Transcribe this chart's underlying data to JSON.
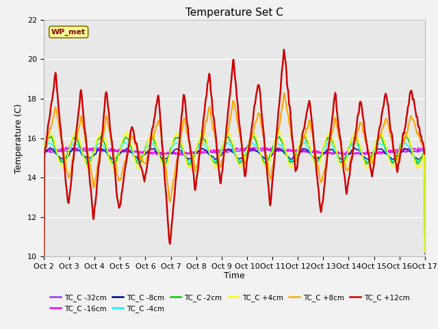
{
  "title": "Temperature Set C",
  "xlabel": "Time",
  "ylabel": "Temperature (C)",
  "ylim": [
    10,
    22
  ],
  "yticks": [
    10,
    12,
    14,
    16,
    18,
    20,
    22
  ],
  "annotation_text": "WP_met",
  "annotation_color": "#8B0000",
  "annotation_bg": "#FFFF99",
  "annotation_edge": "#8B7000",
  "series_colors": {
    "TC_C -32cm": "#9B30FF",
    "TC_C -16cm": "#FF00FF",
    "TC_C -8cm": "#00008B",
    "TC_C -4cm": "#00FFFF",
    "TC_C -2cm": "#00CC00",
    "TC_C +4cm": "#FFFF00",
    "TC_C +8cm": "#FFA500",
    "TC_C +12cm": "#CC0000"
  },
  "xtick_labels": [
    "Oct 2",
    "Oct 3",
    "Oct 4",
    "Oct 5",
    "Oct 6",
    "Oct 7",
    "Oct 8",
    "Oct 9",
    "Oct 10",
    "Oct 11",
    "Oct 12",
    "Oct 13",
    "Oct 14",
    "Oct 15",
    "Oct 16",
    "Oct 17"
  ],
  "fig_bg_color": "#F2F2F2",
  "plot_bg_color": "#E8E8E8"
}
